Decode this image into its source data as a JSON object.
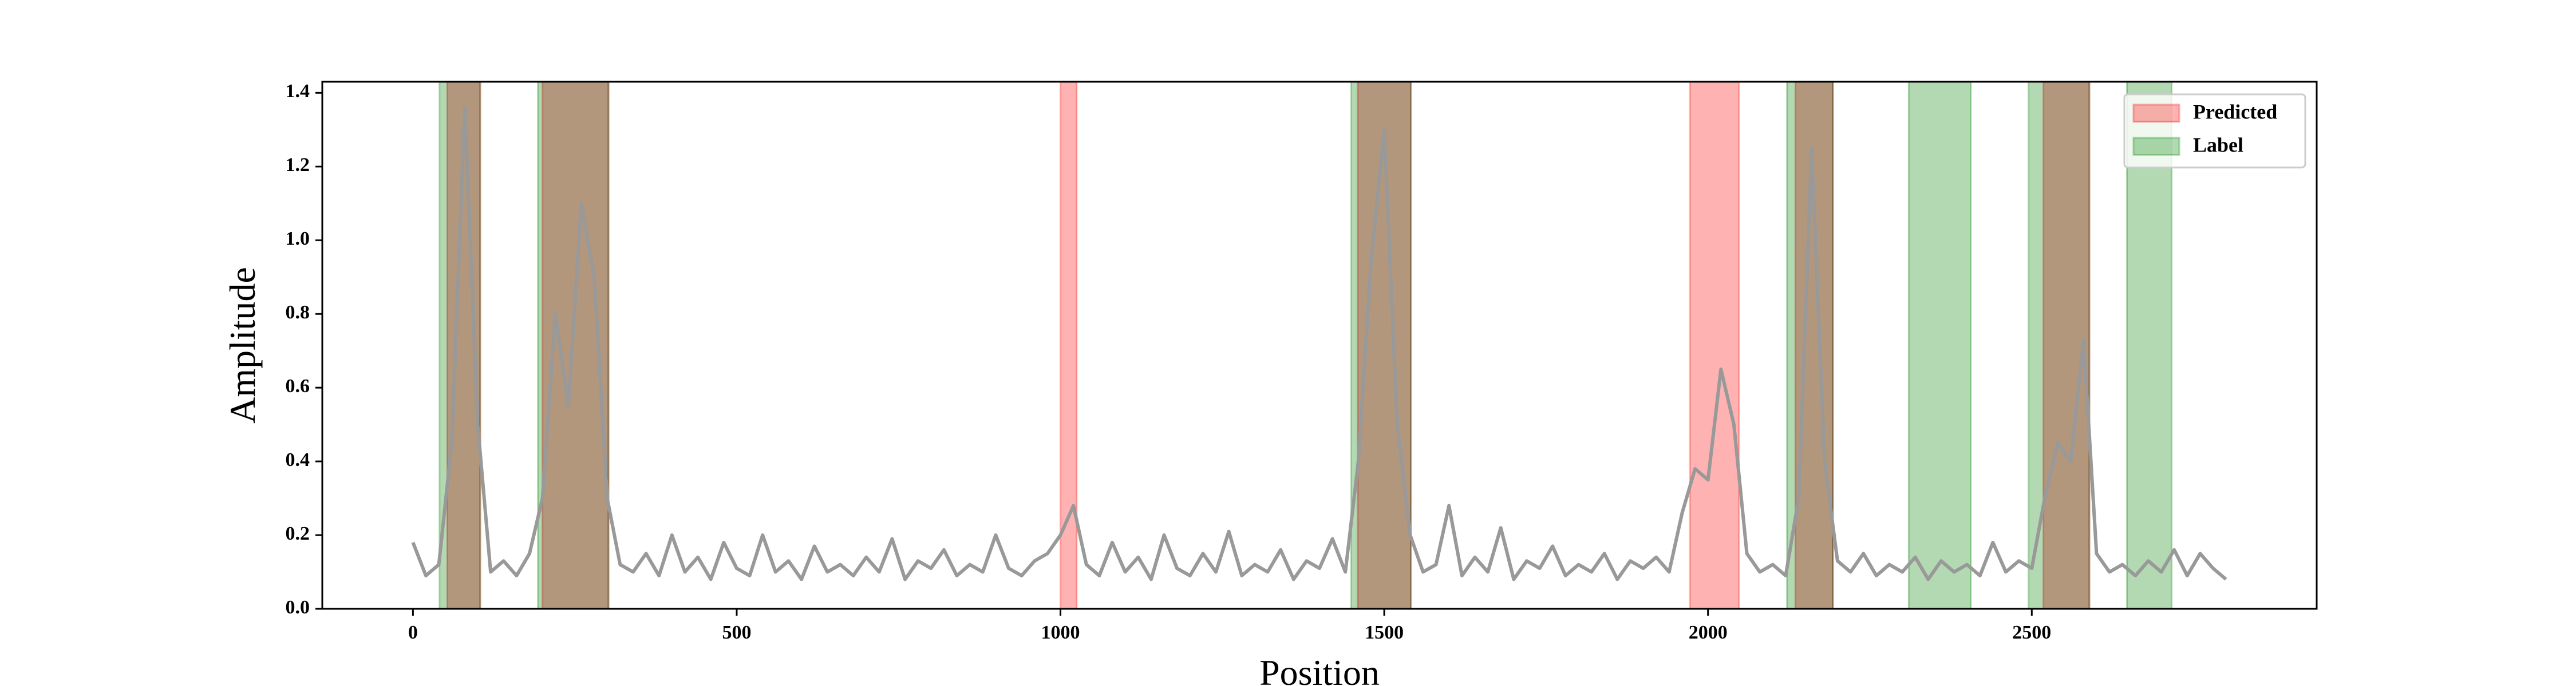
{
  "chart_data": {
    "type": "line",
    "xlabel": "Position",
    "ylabel": "Amplitude",
    "x": [
      0,
      20,
      40,
      60,
      80,
      100,
      120,
      140,
      160,
      180,
      200,
      220,
      240,
      260,
      280,
      300,
      320,
      340,
      360,
      380,
      400,
      420,
      440,
      460,
      480,
      500,
      520,
      540,
      560,
      580,
      600,
      620,
      640,
      660,
      680,
      700,
      720,
      740,
      760,
      780,
      800,
      820,
      840,
      860,
      880,
      900,
      920,
      940,
      960,
      980,
      1000,
      1020,
      1040,
      1060,
      1080,
      1100,
      1120,
      1140,
      1160,
      1180,
      1200,
      1220,
      1240,
      1260,
      1280,
      1300,
      1320,
      1340,
      1360,
      1380,
      1400,
      1420,
      1440,
      1460,
      1480,
      1500,
      1520,
      1540,
      1560,
      1580,
      1600,
      1620,
      1640,
      1660,
      1680,
      1700,
      1720,
      1740,
      1760,
      1780,
      1800,
      1820,
      1840,
      1860,
      1880,
      1900,
      1920,
      1940,
      1960,
      1980,
      2000,
      2020,
      2040,
      2060,
      2080,
      2100,
      2120,
      2140,
      2160,
      2180,
      2200,
      2220,
      2240,
      2260,
      2280,
      2300,
      2320,
      2340,
      2360,
      2380,
      2400,
      2420,
      2440,
      2460,
      2480,
      2500,
      2520,
      2540,
      2560,
      2580,
      2600,
      2620,
      2640,
      2660,
      2680,
      2700,
      2720,
      2740,
      2760,
      2780,
      2800
    ],
    "series": [
      {
        "color": "#999999",
        "values": [
          0.18,
          0.09,
          0.12,
          0.45,
          1.36,
          0.5,
          0.1,
          0.13,
          0.09,
          0.15,
          0.3,
          0.8,
          0.55,
          1.1,
          0.9,
          0.3,
          0.12,
          0.1,
          0.15,
          0.09,
          0.2,
          0.1,
          0.14,
          0.08,
          0.18,
          0.11,
          0.09,
          0.2,
          0.1,
          0.13,
          0.08,
          0.17,
          0.1,
          0.12,
          0.09,
          0.14,
          0.1,
          0.19,
          0.08,
          0.13,
          0.11,
          0.16,
          0.09,
          0.12,
          0.1,
          0.2,
          0.11,
          0.09,
          0.13,
          0.15,
          0.2,
          0.28,
          0.12,
          0.09,
          0.18,
          0.1,
          0.14,
          0.08,
          0.2,
          0.11,
          0.09,
          0.15,
          0.1,
          0.21,
          0.09,
          0.12,
          0.1,
          0.16,
          0.08,
          0.13,
          0.11,
          0.19,
          0.1,
          0.4,
          0.95,
          1.3,
          0.5,
          0.2,
          0.1,
          0.12,
          0.28,
          0.09,
          0.14,
          0.1,
          0.22,
          0.08,
          0.13,
          0.11,
          0.17,
          0.09,
          0.12,
          0.1,
          0.15,
          0.08,
          0.13,
          0.11,
          0.14,
          0.1,
          0.26,
          0.38,
          0.35,
          0.65,
          0.5,
          0.15,
          0.1,
          0.12,
          0.09,
          0.3,
          1.25,
          0.4,
          0.13,
          0.1,
          0.15,
          0.09,
          0.12,
          0.1,
          0.14,
          0.08,
          0.13,
          0.1,
          0.12,
          0.09,
          0.18,
          0.1,
          0.13,
          0.11,
          0.3,
          0.45,
          0.4,
          0.73,
          0.15,
          0.1,
          0.12,
          0.09,
          0.13,
          0.1,
          0.16,
          0.09,
          0.15,
          0.11,
          0.08
        ]
      }
    ],
    "spans": [
      {
        "name": "Predicted",
        "color": "#ff0000",
        "alpha": 0.3,
        "ranges": [
          [
            53,
            104
          ],
          [
            200,
            302
          ],
          [
            1000,
            1025
          ],
          [
            1459,
            1541
          ],
          [
            1972,
            2048
          ],
          [
            2135,
            2193
          ],
          [
            2518,
            2589
          ]
        ]
      },
      {
        "name": "Label",
        "color": "#008000",
        "alpha": 0.3,
        "ranges": [
          [
            41,
            104
          ],
          [
            193,
            302
          ],
          [
            1449,
            1541
          ],
          [
            2122,
            2193
          ],
          [
            2310,
            2406
          ],
          [
            2495,
            2589
          ],
          [
            2647,
            2716
          ]
        ]
      }
    ],
    "xlim": [
      -140,
      2940
    ],
    "ylim": [
      0,
      1.43
    ],
    "xticks": [
      0,
      500,
      1000,
      1500,
      2000,
      2500
    ],
    "yticks": [
      {
        "value": 0,
        "label": "0.0"
      },
      0.2,
      0.4,
      0.6,
      0.8,
      {
        "value": 1,
        "label": "1.0"
      },
      1.2,
      1.4
    ],
    "legend": "upper right"
  }
}
